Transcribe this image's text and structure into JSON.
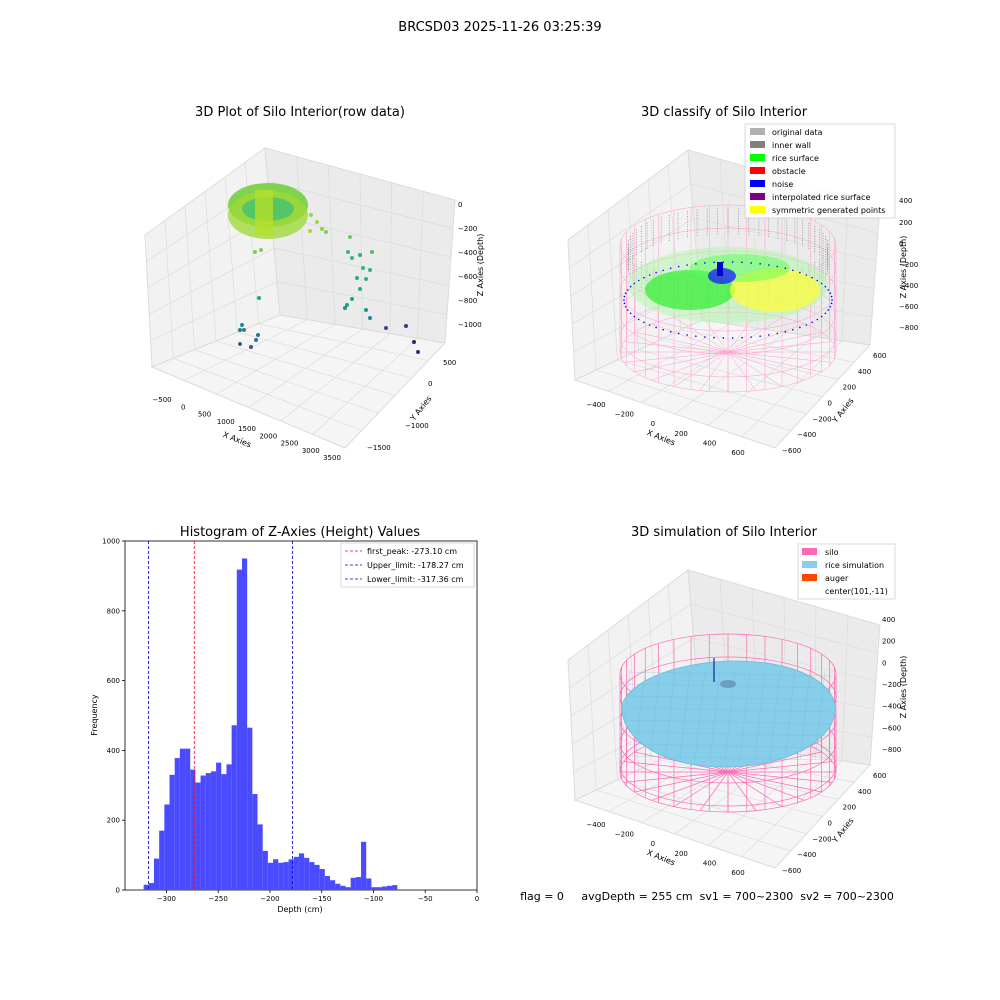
{
  "figure": {
    "suptitle": "BRCSD03 2025-11-26 03:25:39",
    "status_line": "flag = 0     avgDepth = 255 cm  sv1 = 700~2300  sv2 = 700~2300",
    "colors": {
      "hist_bar": "#4a4aff",
      "peak_line": "#ff0000",
      "limit_line": "#0000cc",
      "silo_pink": "#ff69b4",
      "rice_blue": "#87ceeb"
    }
  },
  "panels": {
    "raw": {
      "title": "3D Plot of Silo Interior(row data)",
      "xlabel": "X Axies",
      "ylabel": "Y Axies",
      "zlabel": "Z Axies (Depth)",
      "xticks": [
        "-500",
        "0",
        "500",
        "1000",
        "1500",
        "2000",
        "2500",
        "3000",
        "3500"
      ],
      "yticks": [
        "500",
        "0",
        "-1000",
        "-1500"
      ],
      "zticks": [
        "0",
        "-200",
        "-400",
        "-600",
        "-800",
        "-1000"
      ]
    },
    "classify": {
      "title": "3D classify of Silo Interior",
      "xlabel": "X Axies",
      "ylabel": "Y Axies",
      "zlabel": "Z Axies (Depth)",
      "xticks": [
        "-400",
        "-200",
        "0",
        "200",
        "400",
        "600"
      ],
      "yticks": [
        "600",
        "400",
        "200",
        "0",
        "-200",
        "-400",
        "-600"
      ],
      "zticks": [
        "200",
        "0",
        "-200",
        "-400",
        "-600",
        "-800"
      ],
      "ztop": "400",
      "legend": [
        {
          "label": "original data",
          "color": "#b0b0b0"
        },
        {
          "label": "inner wall",
          "color": "#808080"
        },
        {
          "label": "rice surface",
          "color": "#00ff00"
        },
        {
          "label": "obstacle",
          "color": "#ff0000"
        },
        {
          "label": "noise",
          "color": "#0000ff"
        },
        {
          "label": "interpolated rice surface",
          "color": "#800080"
        },
        {
          "label": "symmetric generated points",
          "color": "#ffff00"
        }
      ]
    },
    "simulation": {
      "title": "3D simulation of Silo Interior",
      "xlabel": "X Axies",
      "ylabel": "Y Axies",
      "zlabel": "Z Axies (Depth)",
      "xticks": [
        "-400",
        "-200",
        "0",
        "200",
        "400",
        "600"
      ],
      "yticks": [
        "600",
        "400",
        "200",
        "0",
        "-200",
        "-400",
        "-600"
      ],
      "zticks": [
        "400",
        "200",
        "0",
        "-200",
        "-400",
        "-600",
        "-800"
      ],
      "legend": [
        {
          "label": "silo",
          "color": "#ff69b4"
        },
        {
          "label": "rice simulation",
          "color": "#87ceeb"
        },
        {
          "label": "auger",
          "color": "#ff4500"
        },
        {
          "label": "center(101,-11)",
          "color": ""
        }
      ]
    }
  },
  "chart_data": {
    "type": "bar",
    "title": "Histogram of Z-Axies (Height) Values",
    "xlabel": "Depth (cm)",
    "ylabel": "Frequency",
    "xlim": [
      -340,
      0
    ],
    "ylim": [
      0,
      1000
    ],
    "xticks": [
      -300,
      -250,
      -200,
      -150,
      -100,
      -50,
      0
    ],
    "yticks": [
      0,
      200,
      400,
      600,
      800,
      1000
    ],
    "bin_width": 5,
    "bins": [
      {
        "x": -322,
        "v": 15
      },
      {
        "x": -317,
        "v": 20
      },
      {
        "x": -312,
        "v": 90
      },
      {
        "x": -307,
        "v": 170
      },
      {
        "x": -302,
        "v": 245
      },
      {
        "x": -297,
        "v": 330
      },
      {
        "x": -292,
        "v": 378
      },
      {
        "x": -287,
        "v": 405
      },
      {
        "x": -282,
        "v": 405
      },
      {
        "x": -277,
        "v": 345
      },
      {
        "x": -272,
        "v": 308
      },
      {
        "x": -267,
        "v": 328
      },
      {
        "x": -262,
        "v": 335
      },
      {
        "x": -257,
        "v": 340
      },
      {
        "x": -252,
        "v": 365
      },
      {
        "x": -247,
        "v": 332
      },
      {
        "x": -242,
        "v": 360
      },
      {
        "x": -237,
        "v": 472
      },
      {
        "x": -232,
        "v": 918
      },
      {
        "x": -227,
        "v": 950
      },
      {
        "x": -222,
        "v": 465
      },
      {
        "x": -217,
        "v": 275
      },
      {
        "x": -212,
        "v": 188
      },
      {
        "x": -207,
        "v": 112
      },
      {
        "x": -202,
        "v": 78
      },
      {
        "x": -197,
        "v": 88
      },
      {
        "x": -192,
        "v": 78
      },
      {
        "x": -187,
        "v": 80
      },
      {
        "x": -182,
        "v": 88
      },
      {
        "x": -177,
        "v": 95
      },
      {
        "x": -172,
        "v": 105
      },
      {
        "x": -167,
        "v": 92
      },
      {
        "x": -162,
        "v": 80
      },
      {
        "x": -157,
        "v": 72
      },
      {
        "x": -152,
        "v": 60
      },
      {
        "x": -147,
        "v": 40
      },
      {
        "x": -142,
        "v": 28
      },
      {
        "x": -137,
        "v": 18
      },
      {
        "x": -132,
        "v": 12
      },
      {
        "x": -127,
        "v": 8
      },
      {
        "x": -122,
        "v": 35
      },
      {
        "x": -117,
        "v": 37
      },
      {
        "x": -112,
        "v": 138
      },
      {
        "x": -107,
        "v": 33
      },
      {
        "x": -102,
        "v": 8
      },
      {
        "x": -97,
        "v": 8
      },
      {
        "x": -92,
        "v": 10
      },
      {
        "x": -87,
        "v": 12
      },
      {
        "x": -82,
        "v": 14
      }
    ],
    "lines": [
      {
        "label": "first_peak: -273.10 cm",
        "x": -273.1,
        "color": "#ff0000"
      },
      {
        "label": "Upper_limit: -178.27 cm",
        "x": -178.27,
        "color": "#0000cc"
      },
      {
        "label": "Lower_limit: -317.36 cm",
        "x": -317.36,
        "color": "#0000cc"
      }
    ],
    "legend_position": "upper right"
  }
}
